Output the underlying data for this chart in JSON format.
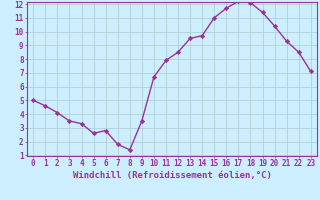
{
  "x": [
    0,
    1,
    2,
    3,
    4,
    5,
    6,
    7,
    8,
    9,
    10,
    11,
    12,
    13,
    14,
    15,
    16,
    17,
    18,
    19,
    20,
    21,
    22,
    23
  ],
  "y": [
    5.0,
    4.6,
    4.1,
    3.5,
    3.3,
    2.6,
    2.8,
    1.8,
    1.4,
    3.5,
    6.7,
    7.9,
    8.5,
    9.5,
    9.7,
    11.0,
    11.7,
    12.2,
    12.1,
    11.4,
    10.4,
    9.3,
    8.5,
    7.1
  ],
  "line_color": "#993399",
  "marker": "D",
  "marker_size": 2.2,
  "line_width": 1.0,
  "bg_color": "#cceeff",
  "grid_color": "#aacccc",
  "xlabel": "Windchill (Refroidissement éolien,°C)",
  "xlabel_color": "#993399",
  "ylim": [
    1,
    12
  ],
  "xlim": [
    -0.5,
    23.5
  ],
  "yticks": [
    1,
    2,
    3,
    4,
    5,
    6,
    7,
    8,
    9,
    10,
    11,
    12
  ],
  "xticks": [
    0,
    1,
    2,
    3,
    4,
    5,
    6,
    7,
    8,
    9,
    10,
    11,
    12,
    13,
    14,
    15,
    16,
    17,
    18,
    19,
    20,
    21,
    22,
    23
  ],
  "tick_label_size": 5.5,
  "xlabel_fontsize": 6.5,
  "spine_color": "#993399"
}
